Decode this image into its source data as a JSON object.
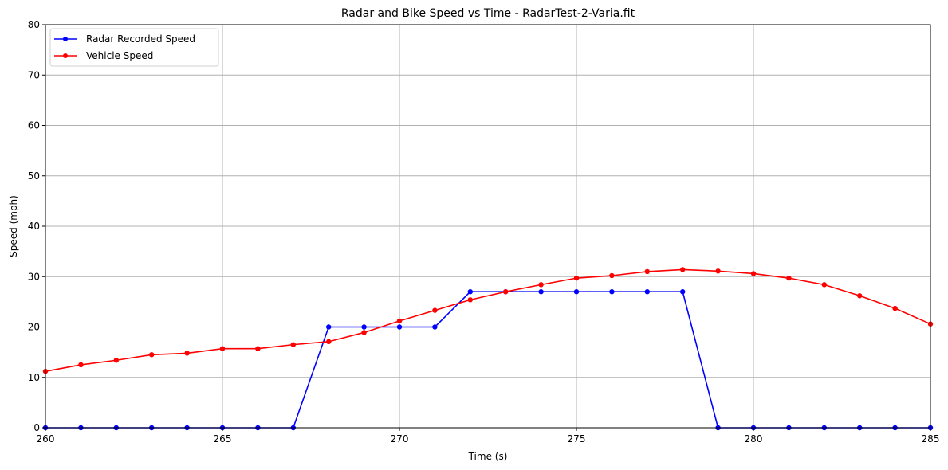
{
  "chart_data": {
    "type": "line",
    "title": "Radar and Bike Speed vs Time - RadarTest-2-Varia.fit",
    "xlabel": "Time (s)",
    "ylabel": "Speed (mph)",
    "xlim": [
      260,
      285
    ],
    "ylim": [
      0,
      80
    ],
    "xticks": [
      260,
      265,
      270,
      275,
      280,
      285
    ],
    "yticks": [
      0,
      10,
      20,
      30,
      40,
      50,
      60,
      70,
      80
    ],
    "grid": true,
    "legend_position": "upper left",
    "x": [
      260,
      261,
      262,
      263,
      264,
      265,
      266,
      267,
      268,
      269,
      270,
      271,
      272,
      273,
      274,
      275,
      276,
      277,
      278,
      279,
      280,
      281,
      282,
      283,
      284,
      285
    ],
    "series": [
      {
        "name": "Radar Recorded Speed",
        "color": "#0000ff",
        "marker": "circle",
        "values": [
          0,
          0,
          0,
          0,
          0,
          0,
          0,
          0,
          20,
          20,
          20,
          20,
          27,
          27,
          27,
          27,
          27,
          27,
          27,
          0,
          0,
          0,
          0,
          0,
          0,
          0
        ]
      },
      {
        "name": "Vehicle Speed",
        "color": "#ff0000",
        "marker": "circle",
        "values": [
          11.2,
          12.5,
          13.4,
          14.5,
          14.8,
          15.7,
          15.7,
          16.5,
          17.1,
          18.9,
          21.2,
          23.3,
          25.4,
          27.0,
          28.4,
          29.7,
          30.2,
          31.0,
          31.4,
          31.1,
          30.6,
          29.7,
          28.4,
          26.2,
          23.7,
          20.6
        ]
      }
    ]
  }
}
